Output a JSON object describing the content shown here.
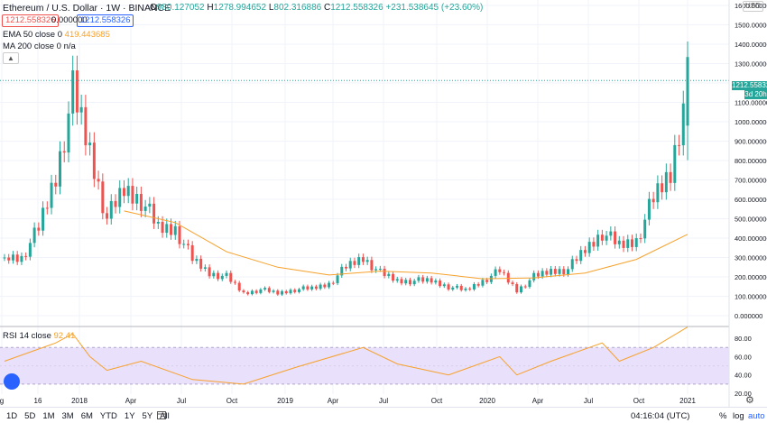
{
  "header": {
    "title": "Ethereum / U.S. Dollar · 1W · BINANCE",
    "ohlc": {
      "o_label": "O",
      "o": "980.127052",
      "h_label": "H",
      "h": "1278.994652",
      "l_label": "L",
      "l": "802.316886",
      "c_label": "C",
      "c": "1212.558326",
      "change": "+231.538645 (+23.60%)"
    },
    "price_box_1": "1212.558326",
    "price_box_zero": "0.000000",
    "price_box_2": "1212.558326"
  },
  "indicators": {
    "ema_label": "EMA 50 close 0",
    "ema_value": "419.443685",
    "ma_label": "MA 200 close 0",
    "ma_value": "n/a",
    "rsi_label": "RSI 14 close",
    "rsi_value": "92.41"
  },
  "price_axis": {
    "currency": "USD",
    "ticks": [
      "1600.000000",
      "1500.000000",
      "1400.000000",
      "1300.000000",
      "1200.000000",
      "1100.000000",
      "1000.000000",
      "900.000000",
      "800.000000",
      "700.000000",
      "600.000000",
      "500.000000",
      "400.000000",
      "300.000000",
      "200.000000",
      "100.000000",
      "0.000000"
    ],
    "current_label": "1212.558326",
    "countdown": "3d 20h"
  },
  "rsi_axis": {
    "ticks": [
      "80.00",
      "60.00",
      "40.00",
      "20.00"
    ]
  },
  "time_axis": {
    "labels": [
      "g",
      "16",
      "2018",
      "Apr",
      "Jul",
      "Oct",
      "2019",
      "Apr",
      "Jul",
      "Oct",
      "2020",
      "Apr",
      "Jul",
      "Oct",
      "2021"
    ]
  },
  "bottom_bar": {
    "ranges": [
      "1D",
      "5D",
      "1M",
      "3M",
      "6M",
      "YTD",
      "1Y",
      "5Y",
      "All"
    ],
    "clock": "04:16:04 (UTC)",
    "percent": "%",
    "log": "log",
    "auto": "auto"
  },
  "colors": {
    "up": "#26a69a",
    "down": "#ef5350",
    "ema": "#f7a12a",
    "rsi": "#f7a12a",
    "rsi_band": "#e9e0fb"
  },
  "chart_data": {
    "type": "candlestick",
    "symbol": "ETHUSD",
    "interval": "1W",
    "ylim": [
      0,
      1600
    ],
    "x_span": [
      "2017-09",
      "2021-01"
    ],
    "series_close_estimate": [
      {
        "date": "2017-09",
        "close": 300
      },
      {
        "date": "2017-10",
        "close": 300
      },
      {
        "date": "2017-11",
        "close": 450
      },
      {
        "date": "2017-12",
        "close": 720
      },
      {
        "date": "2018-01",
        "close": 1150
      },
      {
        "date": "2018-02",
        "close": 850
      },
      {
        "date": "2018-03",
        "close": 500
      },
      {
        "date": "2018-04",
        "close": 650
      },
      {
        "date": "2018-05",
        "close": 600
      },
      {
        "date": "2018-06",
        "close": 450
      },
      {
        "date": "2018-07",
        "close": 450
      },
      {
        "date": "2018-08",
        "close": 290
      },
      {
        "date": "2018-09",
        "close": 220
      },
      {
        "date": "2018-10",
        "close": 200
      },
      {
        "date": "2018-11",
        "close": 115
      },
      {
        "date": "2018-12",
        "close": 135
      },
      {
        "date": "2019-01",
        "close": 115
      },
      {
        "date": "2019-02",
        "close": 135
      },
      {
        "date": "2019-03",
        "close": 140
      },
      {
        "date": "2019-04",
        "close": 165
      },
      {
        "date": "2019-05",
        "close": 250
      },
      {
        "date": "2019-06",
        "close": 300
      },
      {
        "date": "2019-07",
        "close": 220
      },
      {
        "date": "2019-08",
        "close": 180
      },
      {
        "date": "2019-09",
        "close": 180
      },
      {
        "date": "2019-10",
        "close": 180
      },
      {
        "date": "2019-11",
        "close": 150
      },
      {
        "date": "2019-12",
        "close": 130
      },
      {
        "date": "2020-01",
        "close": 180
      },
      {
        "date": "2020-02",
        "close": 230
      },
      {
        "date": "2020-03",
        "close": 130
      },
      {
        "date": "2020-04",
        "close": 200
      },
      {
        "date": "2020-05",
        "close": 230
      },
      {
        "date": "2020-06",
        "close": 240
      },
      {
        "date": "2020-07",
        "close": 340
      },
      {
        "date": "2020-08",
        "close": 430
      },
      {
        "date": "2020-09",
        "close": 360
      },
      {
        "date": "2020-10",
        "close": 390
      },
      {
        "date": "2020-11",
        "close": 600
      },
      {
        "date": "2020-12",
        "close": 740
      },
      {
        "date": "2021-01",
        "close": 1212.56
      }
    ],
    "ema50_estimate": [
      {
        "date": "2018-04",
        "value": 540
      },
      {
        "date": "2018-07",
        "value": 480
      },
      {
        "date": "2018-10",
        "value": 330
      },
      {
        "date": "2019-01",
        "value": 250
      },
      {
        "date": "2019-04",
        "value": 210
      },
      {
        "date": "2019-07",
        "value": 230
      },
      {
        "date": "2019-10",
        "value": 220
      },
      {
        "date": "2020-01",
        "value": 190
      },
      {
        "date": "2020-04",
        "value": 195
      },
      {
        "date": "2020-07",
        "value": 220
      },
      {
        "date": "2020-10",
        "value": 290
      },
      {
        "date": "2021-01",
        "value": 419.44
      }
    ],
    "rsi": {
      "ylim": [
        20,
        90
      ],
      "bands": [
        30,
        70
      ],
      "estimate": [
        {
          "date": "2017-09",
          "value": 55
        },
        {
          "date": "2017-12",
          "value": 75
        },
        {
          "date": "2018-01",
          "value": 85
        },
        {
          "date": "2018-02",
          "value": 60
        },
        {
          "date": "2018-03",
          "value": 45
        },
        {
          "date": "2018-05",
          "value": 55
        },
        {
          "date": "2018-08",
          "value": 35
        },
        {
          "date": "2018-11",
          "value": 30
        },
        {
          "date": "2019-02",
          "value": 48
        },
        {
          "date": "2019-06",
          "value": 70
        },
        {
          "date": "2019-08",
          "value": 52
        },
        {
          "date": "2019-11",
          "value": 40
        },
        {
          "date": "2020-02",
          "value": 60
        },
        {
          "date": "2020-03",
          "value": 40
        },
        {
          "date": "2020-05",
          "value": 55
        },
        {
          "date": "2020-08",
          "value": 75
        },
        {
          "date": "2020-09",
          "value": 55
        },
        {
          "date": "2020-11",
          "value": 70
        },
        {
          "date": "2021-01",
          "value": 92.41
        }
      ]
    }
  }
}
